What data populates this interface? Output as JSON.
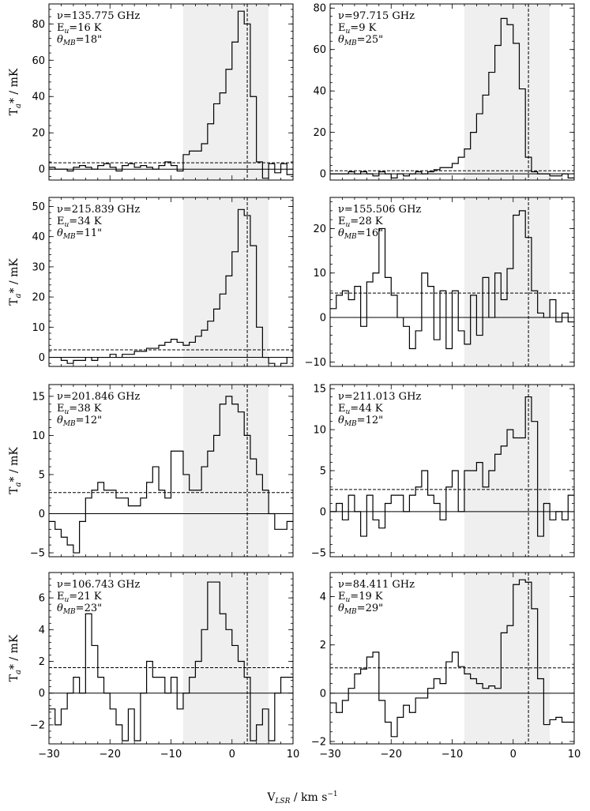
{
  "figure": {
    "xlabel_prefix": "V",
    "xlabel_sub": "LSR",
    "xlabel_unit": " / km s",
    "xlabel_sup": "−1",
    "ylabel_prefix": "T",
    "ylabel_sub": "a",
    "ylabel_suffix": "* / mK",
    "x_ticks": [
      "−30",
      "−20",
      "−10",
      "0",
      "10"
    ],
    "colors": {
      "shade": "#efefef",
      "line": "#000000"
    }
  },
  "chart_data": [
    {
      "type": "line",
      "drawstyle": "steps",
      "freq": "ν=135.775 GHz",
      "eu": "E",
      "eu_sub": "u",
      "eu_val": "=16 K",
      "beam": "θ",
      "beam_sub": "MB",
      "beam_val": "=18\"",
      "xlim": [
        -30,
        10
      ],
      "ylim": [
        -6,
        91
      ],
      "yticks": [
        0,
        20,
        40,
        60,
        80
      ],
      "ytick_labels": [
        "0",
        "20",
        "40",
        "60",
        "80"
      ],
      "shade_range": [
        -8,
        6
      ],
      "vline": 2.5,
      "noise_level": 3.5,
      "x_start": -30,
      "bin_width": 1,
      "values": [
        1,
        0,
        0,
        -1,
        1,
        2,
        1,
        0,
        2,
        3,
        1,
        -1,
        2,
        3,
        1,
        2,
        1,
        0,
        2,
        4,
        2,
        -1,
        8,
        10,
        10,
        14,
        25,
        36,
        42,
        55,
        70,
        87,
        80,
        40,
        4,
        -5,
        3,
        -2,
        3,
        -3
      ]
    },
    {
      "type": "line",
      "drawstyle": "steps",
      "freq": "ν=97.715 GHz",
      "eu": "E",
      "eu_sub": "u",
      "eu_val": "=9 K",
      "beam": "θ",
      "beam_sub": "MB",
      "beam_val": "=25\"",
      "xlim": [
        -30,
        10
      ],
      "ylim": [
        -3,
        82
      ],
      "yticks": [
        0,
        20,
        40,
        60,
        80
      ],
      "ytick_labels": [
        "0",
        "20",
        "40",
        "60",
        "80"
      ],
      "shade_range": [
        -8,
        6
      ],
      "vline": 2.5,
      "noise_level": 1.5,
      "x_start": -30,
      "bin_width": 1,
      "values": [
        0,
        0,
        0,
        1,
        0,
        1,
        0,
        -1,
        1,
        0,
        -2,
        0,
        -1,
        0,
        1,
        0,
        1,
        2,
        3,
        3,
        5,
        8,
        12,
        20,
        29,
        38,
        49,
        62,
        75,
        72,
        63,
        41,
        8,
        1,
        0,
        0,
        -1,
        -1,
        0,
        -2
      ]
    },
    {
      "type": "line",
      "drawstyle": "steps",
      "freq": "ν=215.839 GHz",
      "eu": "E",
      "eu_sub": "u",
      "eu_val": "=34 K",
      "beam": "θ",
      "beam_sub": "MB",
      "beam_val": "=11\"",
      "xlim": [
        -30,
        10
      ],
      "ylim": [
        -3,
        53
      ],
      "yticks": [
        0,
        10,
        20,
        30,
        40,
        50
      ],
      "ytick_labels": [
        "0",
        "10",
        "20",
        "30",
        "40",
        "50"
      ],
      "shade_range": [
        -8,
        6
      ],
      "vline": 2.5,
      "noise_level": 2.5,
      "x_start": -30,
      "bin_width": 1,
      "values": [
        0,
        0,
        -1,
        -2,
        -1,
        -1,
        0,
        -1,
        0,
        0,
        1,
        0,
        1,
        1,
        2,
        2,
        3,
        3,
        4,
        5,
        6,
        5,
        4,
        5,
        7,
        9,
        12,
        16,
        21,
        27,
        35,
        49,
        47,
        37,
        10,
        0,
        -2,
        -3,
        -2,
        0
      ]
    },
    {
      "type": "line",
      "drawstyle": "steps",
      "freq": "ν=155.506 GHz",
      "eu": "E",
      "eu_sub": "u",
      "eu_val": "=28 K",
      "beam": "θ",
      "beam_sub": "MB",
      "beam_val": "=16\"",
      "xlim": [
        -30,
        10
      ],
      "ylim": [
        -11,
        27
      ],
      "yticks": [
        -10,
        0,
        10,
        20
      ],
      "ytick_labels": [
        "−10",
        "0",
        "10",
        "20"
      ],
      "shade_range": [
        -8,
        6
      ],
      "vline": 2.5,
      "noise_level": 5.5,
      "x_start": -30,
      "bin_width": 1,
      "values": [
        2,
        5,
        6,
        4,
        7,
        -2,
        8,
        10,
        20,
        9,
        5,
        0,
        -2,
        -7,
        -3,
        10,
        7,
        -5,
        6,
        -7,
        6,
        -3,
        -6,
        5,
        -4,
        9,
        0,
        10,
        4,
        11,
        23,
        24,
        18,
        6,
        1,
        0,
        4,
        -1,
        1,
        -1
      ]
    },
    {
      "type": "line",
      "drawstyle": "steps",
      "freq": "ν=201.846 GHz",
      "eu": "E",
      "eu_sub": "u",
      "eu_val": "=38 K",
      "beam": "θ",
      "beam_sub": "MB",
      "beam_val": "=12\"",
      "xlim": [
        -30,
        10
      ],
      "ylim": [
        -5.5,
        16.5
      ],
      "yticks": [
        -5,
        0,
        5,
        10,
        15
      ],
      "ytick_labels": [
        "−5",
        "0",
        "5",
        "10",
        "15"
      ],
      "shade_range": [
        -8,
        6
      ],
      "vline": 2.5,
      "noise_level": 2.7,
      "x_start": -30,
      "bin_width": 1,
      "values": [
        -1,
        -2,
        -3,
        -4,
        -5,
        -1,
        2,
        3,
        4,
        3,
        3,
        2,
        2,
        1,
        1,
        2,
        4,
        6,
        3,
        2,
        8,
        8,
        5,
        3,
        3,
        6,
        8,
        10,
        14,
        15,
        14,
        13,
        10,
        7,
        5,
        3,
        0,
        -2,
        -2,
        -1
      ]
    },
    {
      "type": "line",
      "drawstyle": "steps",
      "freq": "ν=211.013 GHz",
      "eu": "E",
      "eu_sub": "u",
      "eu_val": "=44 K",
      "beam": "θ",
      "beam_sub": "MB",
      "beam_val": "=12\"",
      "xlim": [
        -30,
        10
      ],
      "ylim": [
        -5.5,
        15.5
      ],
      "yticks": [
        -5,
        0,
        5,
        10,
        15
      ],
      "ytick_labels": [
        "−5",
        "0",
        "5",
        "10",
        "15"
      ],
      "shade_range": [
        -8,
        6
      ],
      "vline": 2.5,
      "noise_level": 2.7,
      "x_start": -30,
      "bin_width": 1,
      "values": [
        0,
        1,
        -1,
        2,
        0,
        -3,
        2,
        -1,
        -2,
        1,
        2,
        2,
        0,
        2,
        3,
        5,
        2,
        1,
        -1,
        3,
        5,
        0,
        5,
        5,
        6,
        3,
        5,
        7,
        8,
        10,
        9,
        9,
        14,
        11,
        -3,
        1,
        -1,
        0,
        -1,
        2
      ]
    },
    {
      "type": "line",
      "drawstyle": "steps",
      "freq": "ν=106.743 GHz",
      "eu": "E",
      "eu_sub": "u",
      "eu_val": "=21 K",
      "beam": "θ",
      "beam_sub": "MB",
      "beam_val": "=23\"",
      "xlim": [
        -30,
        10
      ],
      "ylim": [
        -3.2,
        7.6
      ],
      "yticks": [
        -2,
        0,
        2,
        4,
        6
      ],
      "ytick_labels": [
        "−2",
        "0",
        "2",
        "4",
        "6"
      ],
      "shade_range": [
        -8,
        6
      ],
      "vline": 2.5,
      "noise_level": 1.6,
      "x_start": -30,
      "bin_width": 1,
      "values": [
        -1,
        -2,
        -1,
        0,
        1,
        0,
        5,
        3,
        1,
        0,
        -1,
        -2,
        -3,
        -1,
        -3,
        0,
        2,
        1,
        1,
        0,
        1,
        -1,
        0,
        1,
        2,
        4,
        7,
        7,
        5,
        4,
        3,
        2,
        1,
        -3,
        -2,
        -1,
        -3,
        0,
        1,
        1
      ]
    },
    {
      "type": "line",
      "drawstyle": "steps",
      "freq": "ν=84.411 GHz",
      "eu": "E",
      "eu_sub": "u",
      "eu_val": "=19 K",
      "beam": "θ",
      "beam_sub": "MB",
      "beam_val": "=29\"",
      "xlim": [
        -30,
        10
      ],
      "ylim": [
        -2.1,
        5.0
      ],
      "yticks": [
        -2,
        0,
        2,
        4
      ],
      "ytick_labels": [
        "−2",
        "0",
        "2",
        "4"
      ],
      "shade_range": [
        -8,
        6
      ],
      "vline": 2.5,
      "noise_level": 1.05,
      "x_start": -30,
      "bin_width": 1,
      "values": [
        -0.4,
        -0.8,
        -0.3,
        0.2,
        0.8,
        1.0,
        1.5,
        1.7,
        -0.3,
        -1.2,
        -1.8,
        -1.0,
        -0.5,
        -0.8,
        -0.2,
        -0.2,
        0.2,
        0.6,
        0.4,
        1.3,
        1.7,
        1.1,
        0.8,
        0.6,
        0.4,
        0.2,
        0.3,
        0.2,
        2.5,
        2.8,
        4.5,
        4.7,
        4.6,
        3.5,
        0.6,
        -1.3,
        -1.1,
        -1.0,
        -1.2,
        -1.2
      ]
    }
  ]
}
